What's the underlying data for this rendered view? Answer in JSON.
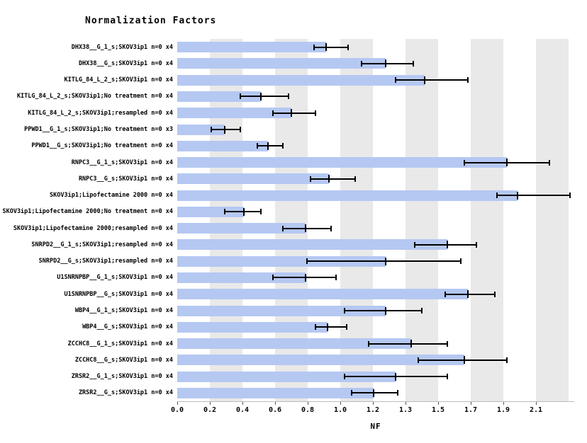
{
  "title": "Normalization Factors",
  "chart_data": {
    "type": "bar",
    "orientation": "horizontal",
    "title": "Normalization Factors",
    "xlabel": "NF",
    "ylabel": "",
    "xlim": [
      0,
      2.324
    ],
    "tick_step": 0.1909091,
    "tick_labels": [
      "0.0",
      "0.2",
      "0.4",
      "0.6",
      "0.8",
      "1.0",
      "1.2",
      "1.3",
      "1.5",
      "1.7",
      "1.9",
      "2.1"
    ],
    "grid": "alternating vertical bands",
    "legend": "none",
    "bar_color": "#b5c8f2",
    "stripe_color": "#e9e9e9",
    "error_bar_color": "#000000",
    "categories": [
      "DHX38__G_1_s;SKOV3ip1 n=0 x4",
      "DHX38__G_s;SKOV3ip1 n=0 x4",
      "KITLG_84_L_2_s;SKOV3ip1 n=0 x4",
      "KITLG_84_L_2_s;SKOV3ip1;No treatment n=0 x4",
      "KITLG_84_L_2_s;SKOV3ip1;resampled n=0 x4",
      "PPWD1__G_1_s;SKOV3ip1;No treatment n=0 x3",
      "PPWD1__G_s;SKOV3ip1;No treatment n=0 x4",
      "RNPC3__G_1_s;SKOV3ip1 n=0 x4",
      "RNPC3__G_s;SKOV3ip1 n=0 x4",
      "SKOV3ip1;Lipofectamine 2000 n=0 x4",
      "SKOV3ip1;Lipofectamine 2000;No treatment n=0 x4",
      "SKOV3ip1;Lipofectamine 2000;resampled n=0 x4",
      "SNRPD2__G_1_s;SKOV3ip1;resampled n=0 x4",
      "SNRPD2__G_s;SKOV3ip1;resampled n=0 x4",
      "U1SNRNPBP__G_1_s;SKOV3ip1 n=0 x4",
      "U1SNRNPBP__G_s;SKOV3ip1 n=0 x4",
      "WBP4__G_1_s;SKOV3ip1 n=0 x4",
      "WBP4__G_s;SKOV3ip1 n=0 x4",
      "ZCCHC8__G_1_s;SKOV3ip1 n=0 x4",
      "ZCCHC8__G_s;SKOV3ip1 n=0 x4",
      "ZRSR2__G_1_s;SKOV3ip1 n=0 x4",
      "ZRSR2__G_s;SKOV3ip1 n=0 x4"
    ],
    "values": [
      0.87,
      1.22,
      1.45,
      0.49,
      0.67,
      0.28,
      0.53,
      1.93,
      0.89,
      1.99,
      0.39,
      0.75,
      1.58,
      1.22,
      0.75,
      1.7,
      1.22,
      0.88,
      1.37,
      1.68,
      1.28,
      1.15
    ],
    "error_low": [
      0.8,
      1.08,
      1.28,
      0.37,
      0.56,
      0.2,
      0.47,
      1.68,
      0.78,
      1.87,
      0.28,
      0.62,
      1.39,
      0.76,
      0.56,
      1.57,
      0.98,
      0.81,
      1.12,
      1.41,
      0.98,
      1.02
    ],
    "error_high": [
      1.0,
      1.38,
      1.7,
      0.65,
      0.81,
      0.37,
      0.62,
      2.18,
      1.04,
      2.3,
      0.49,
      0.9,
      1.75,
      1.66,
      0.93,
      1.86,
      1.43,
      0.99,
      1.58,
      1.93,
      1.58,
      1.29
    ]
  }
}
